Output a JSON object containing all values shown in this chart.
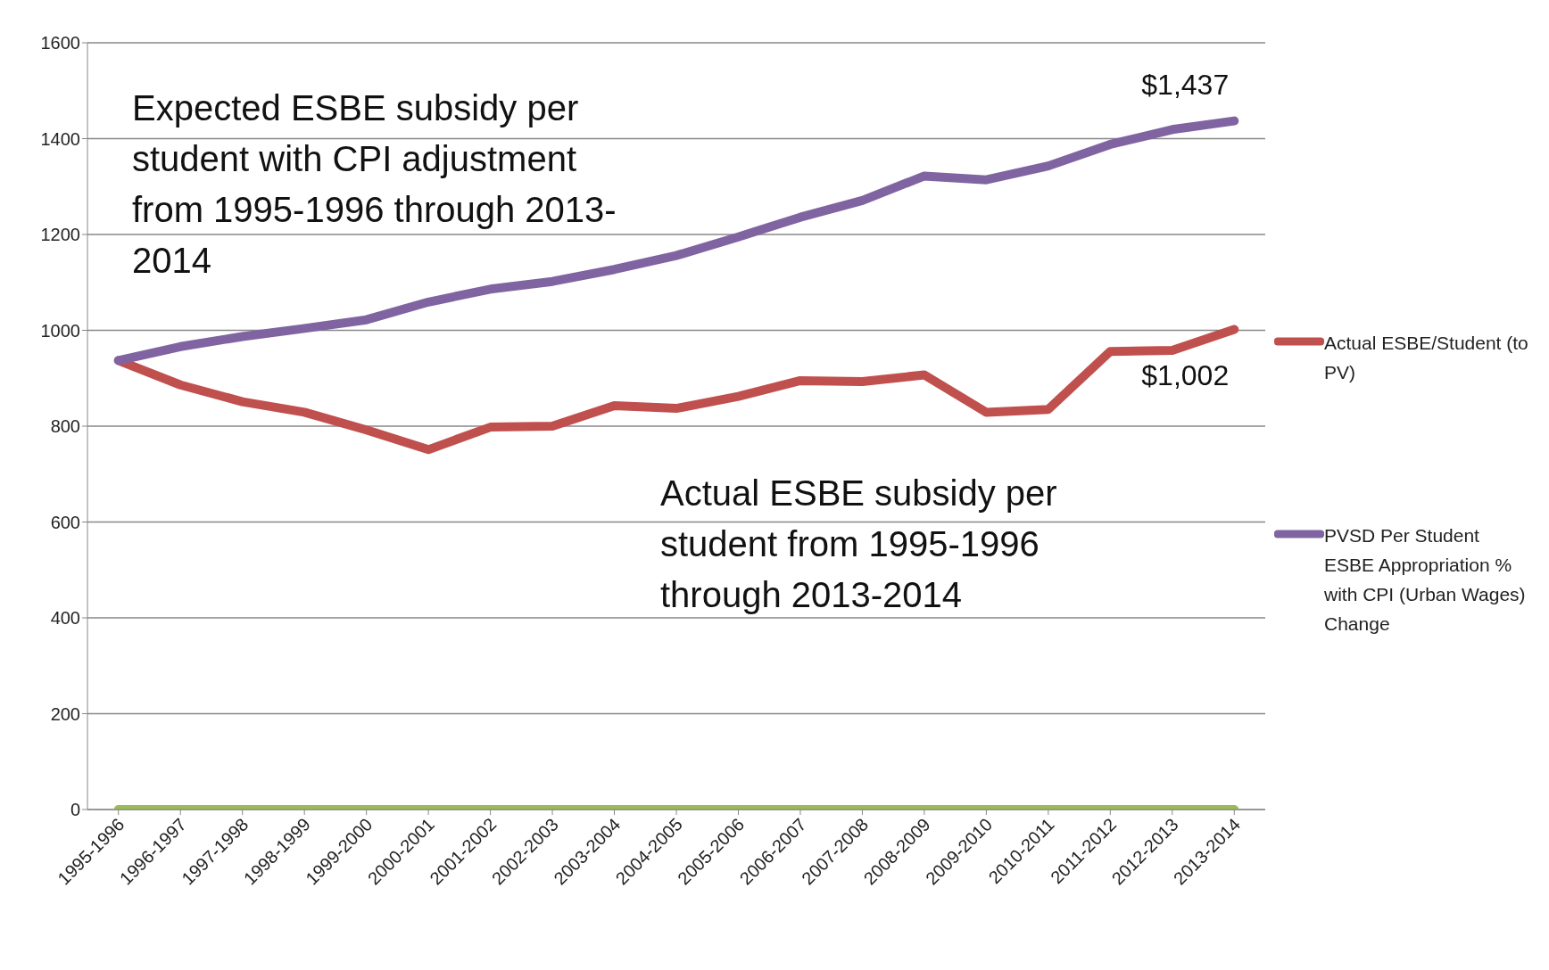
{
  "chart_data": {
    "type": "line",
    "categories": [
      "1995-1996",
      "1996-1997",
      "1997-1998",
      "1998-1999",
      "1999-2000",
      "2000-2001",
      "2001-2002",
      "2002-2003",
      "2003-2004",
      "2004-2005",
      "2005-2006",
      "2006-2007",
      "2007-2008",
      "2008-2009",
      "2009-2010",
      "2010-2011",
      "2011-2012",
      "2012-2013",
      "2013-2014"
    ],
    "series": [
      {
        "name": "Actual ESBE/Student (to PV)",
        "color": "#c0504d",
        "values": [
          937,
          886,
          851,
          829,
          792,
          751,
          798,
          800,
          843,
          837,
          862,
          895,
          893,
          907,
          829,
          835,
          956,
          958,
          1002
        ]
      },
      {
        "name": "PVSD Per Student ESBE Appropriation % with CPI (Urban Wages) Change",
        "color": "#8064a2",
        "values": [
          937,
          966,
          987,
          1004,
          1022,
          1059,
          1086,
          1102,
          1127,
          1156,
          1195,
          1236,
          1271,
          1322,
          1314,
          1343,
          1388,
          1419,
          1437
        ]
      },
      {
        "color": "#9bbb59",
        "values": [
          0,
          0,
          0,
          0,
          0,
          0,
          0,
          0,
          0,
          0,
          0,
          0,
          0,
          0,
          0,
          0,
          0,
          0,
          0
        ]
      }
    ],
    "ylim": [
      0,
      1600
    ],
    "yticks": [
      0,
      200,
      400,
      600,
      800,
      1000,
      1200,
      1400,
      1600
    ],
    "grid": "y",
    "legend": "right",
    "marker": "none",
    "line_style": "solid",
    "annotations": [
      {
        "text": "$1,437",
        "x": "2013-2014",
        "y": 1437
      },
      {
        "text": "$1,002",
        "x": "2013-2014",
        "y": 1002
      },
      "Expected ESBE subsidy per student with CPI adjustment from 1995-1996 through 2013-2014",
      "Actual ESBE subsidy per student from 1995-1996 through 2013-2014"
    ]
  }
}
